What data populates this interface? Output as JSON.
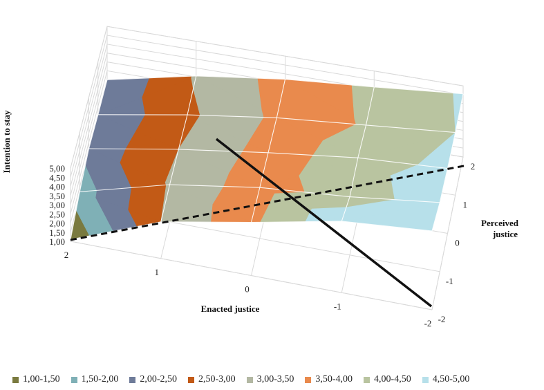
{
  "chart_data": {
    "type": "surface",
    "zlabel": "Intention to stay",
    "xlabel": "Enacted justice",
    "ylabel": "Perceived justice",
    "z_ticks": [
      "1,00",
      "1,50",
      "2,00",
      "2,50",
      "3,00",
      "3,50",
      "4,00",
      "4,50",
      "5,00"
    ],
    "x_ticks": [
      "2",
      "1",
      "0",
      "-1",
      "-2"
    ],
    "y_ticks": [
      "2",
      "1",
      "0",
      "-1",
      "-2"
    ],
    "zlim": [
      1,
      5
    ],
    "x_values": [
      2,
      1,
      0,
      -1,
      -2
    ],
    "y_values": [
      -2,
      -1,
      0,
      1,
      2
    ],
    "z_grid": [
      [
        1.1,
        3.0,
        3.9,
        4.9,
        5.3
      ],
      [
        1.75,
        3.05,
        3.8,
        4.2,
        4.8
      ],
      [
        2.15,
        3.0,
        3.7,
        4.3,
        4.6
      ],
      [
        2.05,
        2.9,
        3.6,
        4.05,
        4.5
      ],
      [
        2.0,
        3.05,
        3.7,
        4.1,
        4.55
      ]
    ],
    "bands": [
      {
        "label": "1,00-1,50",
        "color": "#7a7a3f"
      },
      {
        "label": "1,50-2,00",
        "color": "#7fb0b6"
      },
      {
        "label": "2,00-2,50",
        "color": "#6e7b99"
      },
      {
        "label": "2,50-3,00",
        "color": "#c25a16"
      },
      {
        "label": "3,00-3,50",
        "color": "#b3b8a3"
      },
      {
        "label": "3,50-4,00",
        "color": "#e98a4d"
      },
      {
        "label": "4,00-4,50",
        "color": "#b9c4a0"
      },
      {
        "label": "4,50-5,00",
        "color": "#b7e0ea"
      }
    ],
    "grid": true,
    "legend_position": "bottom"
  }
}
